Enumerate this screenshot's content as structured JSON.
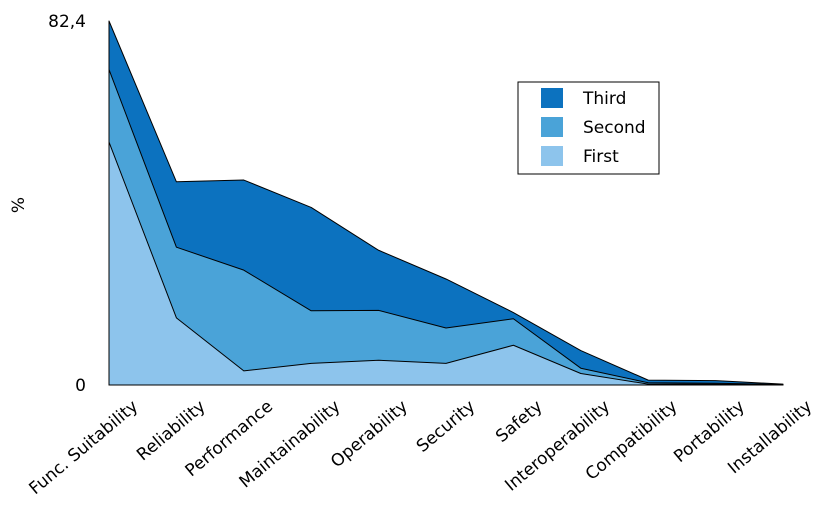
{
  "chart_data": {
    "type": "area",
    "stacked": true,
    "title": "",
    "xlabel": "",
    "ylabel": "%",
    "ylim": [
      0,
      82.4
    ],
    "y_tick_labels": [
      "0",
      "82,4"
    ],
    "categories": [
      "Func. Suitability",
      "Reliability",
      "Performance",
      "Maintainability",
      "Operability",
      "Security",
      "Safety",
      "Interoperability",
      "Compatibility",
      "Portability",
      "Installability"
    ],
    "series": [
      {
        "name": "First",
        "color": "#8DC4EC",
        "values": [
          55.0,
          15.2,
          3.2,
          4.9,
          5.6,
          4.9,
          9.0,
          2.6,
          0.2,
          0.2,
          0.0
        ]
      },
      {
        "name": "Second",
        "color": "#4AA3D8",
        "values": [
          16.4,
          16.0,
          22.8,
          11.9,
          11.3,
          8.0,
          6.0,
          1.2,
          0.3,
          0.2,
          0.1
        ]
      },
      {
        "name": "Third",
        "color": "#0C72BF",
        "values": [
          11.0,
          14.8,
          20.4,
          23.4,
          13.6,
          11.1,
          1.4,
          4.0,
          0.6,
          0.6,
          0.1
        ]
      }
    ],
    "legend": {
      "position": "top-right",
      "order": [
        "Third",
        "Second",
        "First"
      ]
    },
    "grid": false
  }
}
